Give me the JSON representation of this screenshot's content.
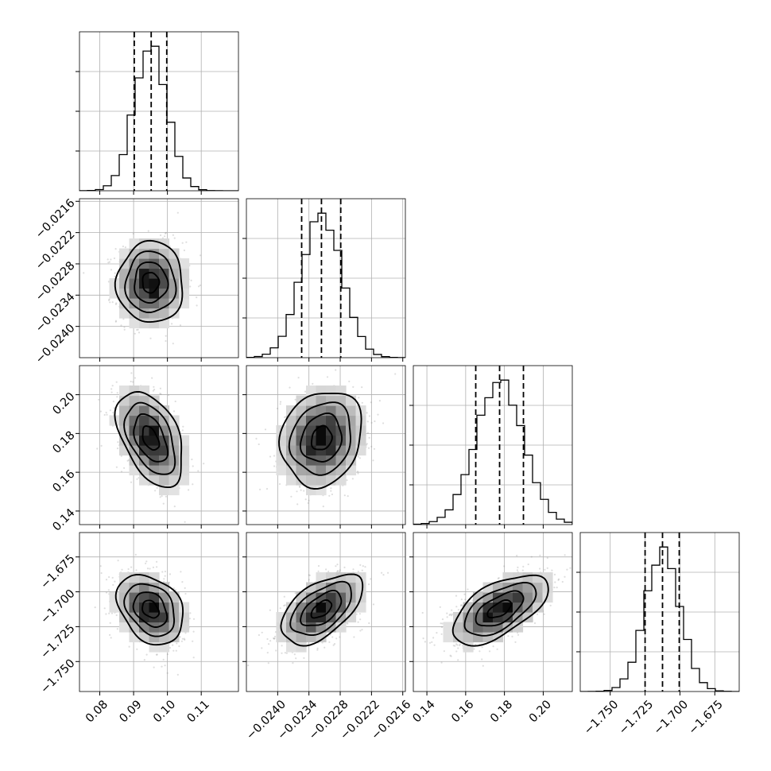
{
  "chart_data": {
    "type": "corner",
    "parameters": [
      {
        "range": [
          0.074,
          0.121
        ],
        "ticks": [
          0.08,
          0.09,
          0.1,
          0.11
        ],
        "tick_labels": [
          "0.08",
          "0.09",
          "0.10",
          "0.11"
        ],
        "mean": 0.095,
        "sd": 0.0049,
        "quantiles": [
          0.0902,
          0.0952,
          0.0998
        ]
      },
      {
        "range": [
          -0.0246,
          -0.02155
        ],
        "ticks": [
          -0.024,
          -0.0234,
          -0.0228,
          -0.0222,
          -0.0216
        ],
        "tick_labels": [
          "−0.0240",
          "−0.0234",
          "−0.0228",
          "−0.0222",
          "−0.0216"
        ],
        "mean": -0.023158,
        "sd": 0.00039,
        "quantiles": [
          -0.02354,
          -0.02316,
          -0.02279
        ]
      },
      {
        "range": [
          0.133,
          0.215
        ],
        "ticks": [
          0.14,
          0.16,
          0.18,
          0.2
        ],
        "tick_labels": [
          "0.14",
          "0.16",
          "0.18",
          "0.20"
        ],
        "mean": 0.1775,
        "sd": 0.0123,
        "quantiles": [
          0.1652,
          0.1775,
          0.1898
        ]
      },
      {
        "range": [
          -1.7715,
          -1.6575
        ],
        "ticks": [
          -1.75,
          -1.725,
          -1.7,
          -1.675
        ],
        "tick_labels": [
          "−1.750",
          "−1.725",
          "−1.700",
          "−1.675"
        ],
        "mean": -1.7125,
        "sd": 0.0125,
        "quantiles": [
          -1.725,
          -1.7125,
          -1.7005
        ]
      }
    ],
    "correlations": [
      {
        "pair": [
          0,
          1
        ],
        "rho": 0.0
      },
      {
        "pair": [
          0,
          2
        ],
        "rho": -0.45
      },
      {
        "pair": [
          1,
          2
        ],
        "rho": 0.15
      },
      {
        "pair": [
          0,
          3
        ],
        "rho": -0.3
      },
      {
        "pair": [
          1,
          3
        ],
        "rho": 0.55
      },
      {
        "pair": [
          2,
          3
        ],
        "rho": 0.6
      }
    ],
    "histogram_bins": 20,
    "contour_levels_sigma": [
      0.5,
      1.0,
      1.5,
      2.0
    ],
    "grid": true,
    "colors": {
      "points": "#8a8a8a",
      "lines": "#000000",
      "grid": "#b0b0b0"
    }
  }
}
